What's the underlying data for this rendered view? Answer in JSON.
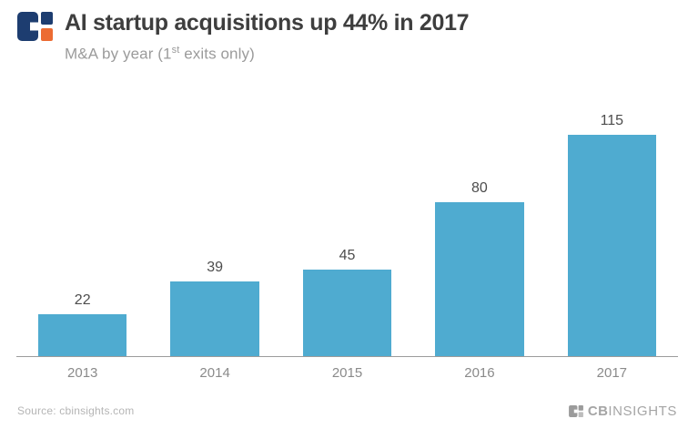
{
  "header": {
    "title": "AI startup acquisitions up 44% in 2017",
    "subtitle": {
      "prefix": "M&A by year (1",
      "sup": "st",
      "suffix": " exits only)"
    }
  },
  "chart_data": {
    "type": "bar",
    "categories": [
      "2013",
      "2014",
      "2015",
      "2016",
      "2017"
    ],
    "values": [
      22,
      39,
      45,
      80,
      115
    ],
    "title": "AI startup acquisitions up 44% in 2017",
    "subtitle": "M&A by year (1st exits only)",
    "xlabel": "",
    "ylabel": "",
    "ylim": [
      0,
      125
    ],
    "grid": false,
    "legend": false,
    "value_labels_shown": true,
    "bar_color": "#4fabd0"
  },
  "footer": {
    "source": "Source: cbinsights.com",
    "brand_cb": "CB",
    "brand_insights": "INSIGHTS"
  },
  "colors": {
    "bar": "#4fabd0",
    "title_text": "#3e3e3e",
    "subtitle_text": "#9b9b9b",
    "value_label_text": "#4d4d4d",
    "axis_line": "#9c9c9c",
    "tick_label_text": "#8a8a8a",
    "source_text": "#b5b5b5",
    "brand_text": "#a5a5a5",
    "logo_navy": "#1d3d70",
    "logo_orange": "#ec6b32"
  },
  "icons": {
    "header_logo": "cbinsights-logo",
    "footer_logo": "cbinsights-logo-gray"
  }
}
